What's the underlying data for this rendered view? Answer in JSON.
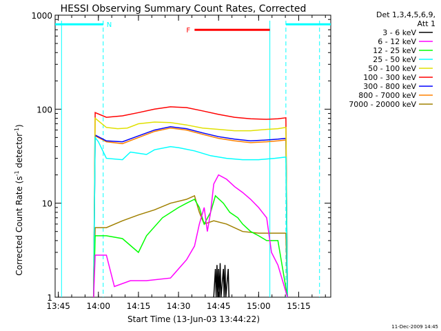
{
  "chart_data": {
    "type": "line",
    "title": "HESSI Observing Summary Count Rates, Corrected",
    "xlabel": "Start Time (13-Jun-03 13:44:22)",
    "ylabel_main": "Corrected Count Rate (s",
    "ylabel_sup1": "-1",
    "ylabel_mid": " detector",
    "ylabel_sup2": "-1",
    "ylabel_end": ")",
    "y_scale": "log",
    "ylim": [
      1,
      1000
    ],
    "xlim_minutes": [
      13.73,
      15.45
    ],
    "x_ticks": [
      {
        "label": "13:45",
        "hours": 13.75
      },
      {
        "label": "14:00",
        "hours": 14.0
      },
      {
        "label": "14:15",
        "hours": 14.25
      },
      {
        "label": "14:30",
        "hours": 14.5
      },
      {
        "label": "14:45",
        "hours": 14.75
      },
      {
        "label": "15:00",
        "hours": 15.0
      },
      {
        "label": "15:15",
        "hours": 15.25
      }
    ],
    "y_ticks": [
      {
        "label": "1",
        "value": 1
      },
      {
        "label": "10",
        "value": 10
      },
      {
        "label": "100",
        "value": 100
      },
      {
        "label": "1000",
        "value": 1000
      }
    ],
    "legend_header": [
      "Det 1,3,4,5,6,9,",
      "Att 1"
    ],
    "series": [
      {
        "name": "3 - 6 keV",
        "color": "#000000",
        "points": [
          [
            14.72,
            1
          ],
          [
            14.73,
            2.0
          ],
          [
            14.735,
            1
          ],
          [
            14.74,
            2.2
          ],
          [
            14.745,
            1
          ],
          [
            14.75,
            2.0
          ],
          [
            14.755,
            1
          ],
          [
            14.76,
            2.3
          ],
          [
            14.765,
            1
          ],
          [
            14.78,
            2.0
          ],
          [
            14.785,
            1
          ],
          [
            14.79,
            2.2
          ],
          [
            14.795,
            1
          ],
          [
            14.81,
            2.0
          ],
          [
            14.815,
            1
          ]
        ]
      },
      {
        "name": "6 - 12 keV",
        "color": "#ff00ff",
        "points": [
          [
            13.97,
            1
          ],
          [
            13.98,
            2.8
          ],
          [
            14.05,
            2.8
          ],
          [
            14.1,
            1.3
          ],
          [
            14.2,
            1.5
          ],
          [
            14.3,
            1.5
          ],
          [
            14.45,
            1.6
          ],
          [
            14.55,
            2.5
          ],
          [
            14.6,
            3.5
          ],
          [
            14.63,
            6
          ],
          [
            14.66,
            9
          ],
          [
            14.68,
            5
          ],
          [
            14.7,
            8
          ],
          [
            14.72,
            16
          ],
          [
            14.75,
            20
          ],
          [
            14.8,
            18
          ],
          [
            14.85,
            15
          ],
          [
            14.9,
            13
          ],
          [
            14.95,
            11
          ],
          [
            15.0,
            9
          ],
          [
            15.05,
            7
          ],
          [
            15.08,
            3
          ],
          [
            15.12,
            2.2
          ],
          [
            15.18,
            1
          ]
        ]
      },
      {
        "name": "12 - 25 keV",
        "color": "#00ff00",
        "points": [
          [
            13.97,
            1
          ],
          [
            13.98,
            4.5
          ],
          [
            14.05,
            4.5
          ],
          [
            14.15,
            4.2
          ],
          [
            14.25,
            3.0
          ],
          [
            14.3,
            4.5
          ],
          [
            14.4,
            7
          ],
          [
            14.5,
            9
          ],
          [
            14.55,
            10
          ],
          [
            14.6,
            11
          ],
          [
            14.63,
            9
          ],
          [
            14.66,
            6
          ],
          [
            14.7,
            8
          ],
          [
            14.73,
            12
          ],
          [
            14.78,
            10
          ],
          [
            14.82,
            8
          ],
          [
            14.87,
            7
          ],
          [
            14.9,
            6
          ],
          [
            14.95,
            5
          ],
          [
            15.0,
            4.5
          ],
          [
            15.05,
            4.0
          ],
          [
            15.12,
            4.0
          ],
          [
            15.18,
            1
          ]
        ]
      },
      {
        "name": "25 - 50 keV",
        "color": "#00ffff",
        "points": [
          [
            13.97,
            1
          ],
          [
            13.98,
            50
          ],
          [
            14.0,
            45
          ],
          [
            14.05,
            30
          ],
          [
            14.15,
            29
          ],
          [
            14.2,
            35
          ],
          [
            14.25,
            34
          ],
          [
            14.3,
            33
          ],
          [
            14.35,
            37
          ],
          [
            14.45,
            40
          ],
          [
            14.5,
            39
          ],
          [
            14.6,
            36
          ],
          [
            14.7,
            32
          ],
          [
            14.8,
            30
          ],
          [
            14.9,
            29
          ],
          [
            15.0,
            29
          ],
          [
            15.1,
            30
          ],
          [
            15.17,
            31
          ],
          [
            15.18,
            1
          ]
        ]
      },
      {
        "name": "50 - 100 keV",
        "color": "#e0e000",
        "points": [
          [
            13.97,
            1
          ],
          [
            13.98,
            80
          ],
          [
            14.05,
            64
          ],
          [
            14.12,
            62
          ],
          [
            14.18,
            63
          ],
          [
            14.25,
            70
          ],
          [
            14.35,
            73
          ],
          [
            14.45,
            72
          ],
          [
            14.55,
            68
          ],
          [
            14.65,
            63
          ],
          [
            14.75,
            61
          ],
          [
            14.85,
            59
          ],
          [
            14.95,
            59
          ],
          [
            15.05,
            61
          ],
          [
            15.12,
            62
          ],
          [
            15.17,
            64
          ],
          [
            15.18,
            1
          ]
        ]
      },
      {
        "name": "100 - 300 keV",
        "color": "#ff0000",
        "points": [
          [
            13.97,
            1
          ],
          [
            13.98,
            92
          ],
          [
            14.05,
            82
          ],
          [
            14.15,
            85
          ],
          [
            14.25,
            92
          ],
          [
            14.35,
            100
          ],
          [
            14.45,
            106
          ],
          [
            14.55,
            104
          ],
          [
            14.65,
            96
          ],
          [
            14.75,
            88
          ],
          [
            14.85,
            82
          ],
          [
            14.95,
            79
          ],
          [
            15.05,
            78
          ],
          [
            15.12,
            79
          ],
          [
            15.17,
            81
          ],
          [
            15.18,
            1
          ]
        ]
      },
      {
        "name": "300 - 800 keV",
        "color": "#0000ff",
        "points": [
          [
            13.97,
            1
          ],
          [
            13.98,
            53
          ],
          [
            14.05,
            46
          ],
          [
            14.15,
            45
          ],
          [
            14.25,
            52
          ],
          [
            14.35,
            60
          ],
          [
            14.45,
            65
          ],
          [
            14.55,
            62
          ],
          [
            14.65,
            56
          ],
          [
            14.75,
            51
          ],
          [
            14.85,
            48
          ],
          [
            14.95,
            46
          ],
          [
            15.05,
            47
          ],
          [
            15.12,
            48
          ],
          [
            15.17,
            49
          ],
          [
            15.18,
            1
          ]
        ]
      },
      {
        "name": "800 - 7000 keV",
        "color": "#ff8000",
        "points": [
          [
            13.97,
            1
          ],
          [
            13.98,
            52
          ],
          [
            14.05,
            45
          ],
          [
            14.15,
            43
          ],
          [
            14.25,
            50
          ],
          [
            14.35,
            58
          ],
          [
            14.45,
            63
          ],
          [
            14.55,
            60
          ],
          [
            14.65,
            54
          ],
          [
            14.75,
            49
          ],
          [
            14.85,
            46
          ],
          [
            14.95,
            44
          ],
          [
            15.05,
            45
          ],
          [
            15.12,
            46
          ],
          [
            15.17,
            47
          ],
          [
            15.18,
            1
          ]
        ]
      },
      {
        "name": "7000 - 20000 keV",
        "color": "#a08000",
        "points": [
          [
            13.97,
            1
          ],
          [
            13.98,
            5.5
          ],
          [
            14.05,
            5.5
          ],
          [
            14.15,
            6.5
          ],
          [
            14.25,
            7.5
          ],
          [
            14.35,
            8.5
          ],
          [
            14.45,
            10
          ],
          [
            14.55,
            11
          ],
          [
            14.6,
            12
          ],
          [
            14.63,
            8
          ],
          [
            14.66,
            6
          ],
          [
            14.72,
            6.5
          ],
          [
            14.8,
            6
          ],
          [
            14.9,
            5
          ],
          [
            15.0,
            4.8
          ],
          [
            15.1,
            4.8
          ],
          [
            15.17,
            4.8
          ],
          [
            15.18,
            1
          ]
        ]
      }
    ],
    "annotations": {
      "night_label": "N",
      "flare_label": "F",
      "night_color": "#00ffff",
      "flare_color": "#ff0000",
      "night_bars": [
        [
          13.73,
          14.03
        ],
        [
          15.17,
          15.45
        ]
      ],
      "night_dashed_x": [
        14.03,
        15.17
      ],
      "saa_solid_x": [
        13.77,
        15.07
      ],
      "saa_dashed_x": [
        15.38
      ],
      "flare_bar": [
        14.6,
        15.07
      ],
      "bar_level": 800
    },
    "footer_date": "11-Dec-2009 14:45"
  }
}
